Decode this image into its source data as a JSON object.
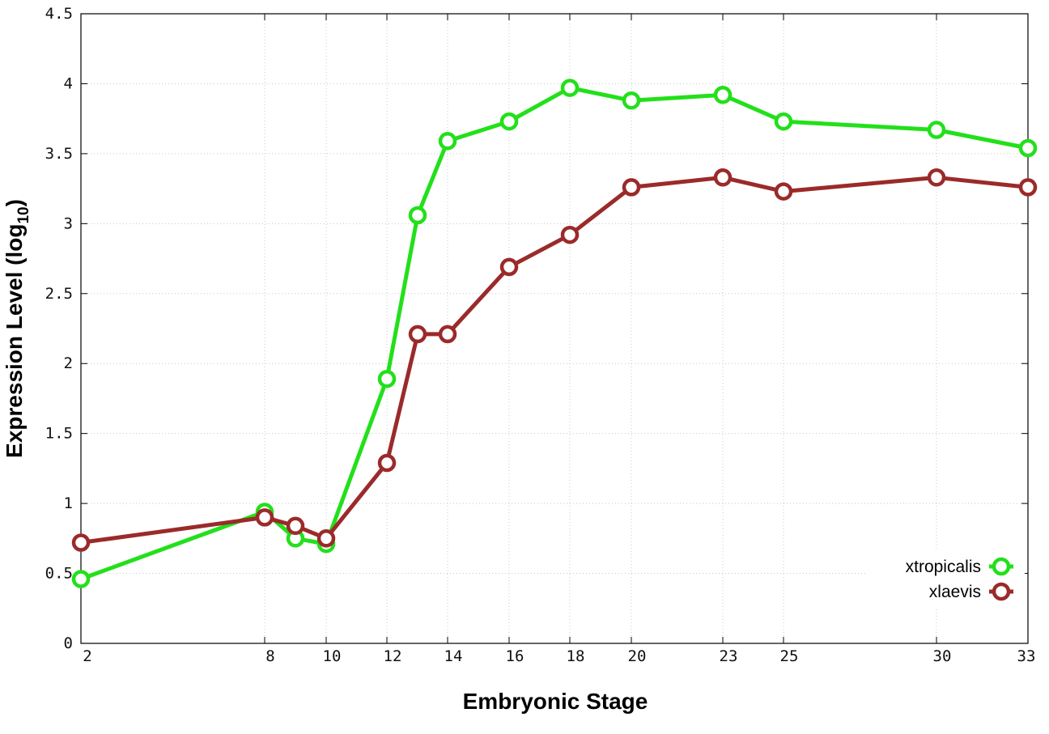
{
  "chart_data": {
    "type": "line",
    "xlabel": "Embryonic Stage",
    "ylabel_main": "Expression Level (log",
    "ylabel_sub": "10",
    "ylabel_close": ")",
    "x_scale": "categorical-positioned",
    "x_ticks": [
      "2",
      "8",
      "10",
      "12",
      "14",
      "16",
      "18",
      "20",
      "23",
      "25",
      "30",
      "33"
    ],
    "ylim": [
      0,
      4.5
    ],
    "y_ticks": [
      "0",
      "0.5",
      "1",
      "1.5",
      "2",
      "2.5",
      "3",
      "3.5",
      "4",
      "4.5"
    ],
    "grid": true,
    "legend_position": "bottom-right",
    "colors": {
      "xtropicalis": "#22e01a",
      "xlaevis": "#9b2a2a"
    },
    "series": [
      {
        "name": "xtropicalis",
        "x": [
          2,
          8,
          9,
          10,
          12,
          13,
          14,
          16,
          18,
          20,
          23,
          25,
          30,
          33
        ],
        "values": [
          0.46,
          0.94,
          0.75,
          0.71,
          1.89,
          3.06,
          3.59,
          3.73,
          3.97,
          3.88,
          3.92,
          3.73,
          3.67,
          3.54
        ]
      },
      {
        "name": "xlaevis",
        "x": [
          2,
          8,
          9,
          10,
          12,
          13,
          14,
          16,
          18,
          20,
          23,
          25,
          30,
          33
        ],
        "values": [
          0.72,
          0.9,
          0.84,
          0.75,
          1.29,
          2.21,
          2.21,
          2.69,
          2.92,
          3.26,
          3.33,
          3.23,
          3.33,
          3.26
        ]
      }
    ]
  }
}
